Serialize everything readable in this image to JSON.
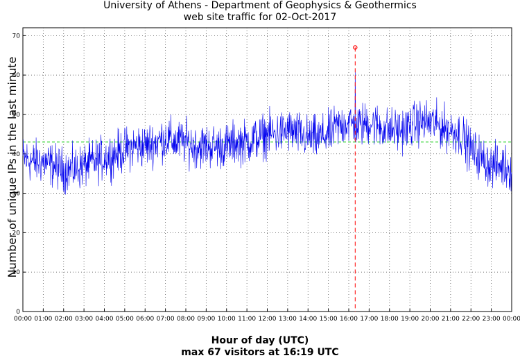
{
  "chart_data": {
    "type": "line",
    "title": "University of Athens - Department of Geophysics & Geothermics",
    "subtitle": "web site traffic for 02-Oct-2017",
    "xlabel": "Hour of day (UTC)",
    "ylabel": "Number of unique IPs in the last minute",
    "footer": "max 67 visitors at 16:19 UTC",
    "xlim": [
      "00:00",
      "24:00"
    ],
    "ylim": [
      0,
      72
    ],
    "x_ticks": [
      "00:00",
      "01:00",
      "02:00",
      "03:00",
      "04:00",
      "05:00",
      "06:00",
      "07:00",
      "08:00",
      "09:00",
      "10:00",
      "11:00",
      "12:00",
      "13:00",
      "14:00",
      "15:00",
      "16:00",
      "17:00",
      "18:00",
      "19:00",
      "20:00",
      "21:00",
      "22:00",
      "23:00",
      "00:00"
    ],
    "y_ticks": [
      0,
      10,
      20,
      30,
      40,
      50,
      60,
      70
    ],
    "grid": true,
    "series": [
      {
        "color": "#0000ee",
        "x": [
          "00:00",
          "00:30",
          "01:00",
          "01:30",
          "02:00",
          "02:30",
          "03:00",
          "03:30",
          "04:00",
          "04:30",
          "05:00",
          "05:30",
          "06:00",
          "06:30",
          "07:00",
          "07:30",
          "08:00",
          "08:30",
          "09:00",
          "09:30",
          "10:00",
          "10:30",
          "11:00",
          "11:30",
          "12:00",
          "12:30",
          "13:00",
          "13:30",
          "14:00",
          "14:30",
          "15:00",
          "15:30",
          "16:00",
          "16:30",
          "17:00",
          "17:30",
          "18:00",
          "18:30",
          "19:00",
          "19:30",
          "20:00",
          "20:30",
          "21:00",
          "21:30",
          "22:00",
          "22:30",
          "23:00",
          "23:30",
          "24:00"
        ],
        "values": [
          39,
          38,
          38,
          37,
          36,
          36,
          37,
          38,
          39,
          40,
          41,
          42,
          42,
          43,
          44,
          43,
          43,
          42,
          42,
          42,
          42,
          43,
          43,
          44,
          45,
          45,
          46,
          45,
          44,
          44,
          45,
          47,
          48,
          47,
          48,
          47,
          46,
          46,
          47,
          48,
          48,
          47,
          46,
          45,
          41,
          39,
          37,
          37,
          36
        ]
      },
      {
        "color": "#00cc00",
        "values": [
          43
        ]
      }
    ],
    "max_marker": {
      "x": "16:19",
      "y": 67,
      "color": "#ff0000"
    }
  }
}
